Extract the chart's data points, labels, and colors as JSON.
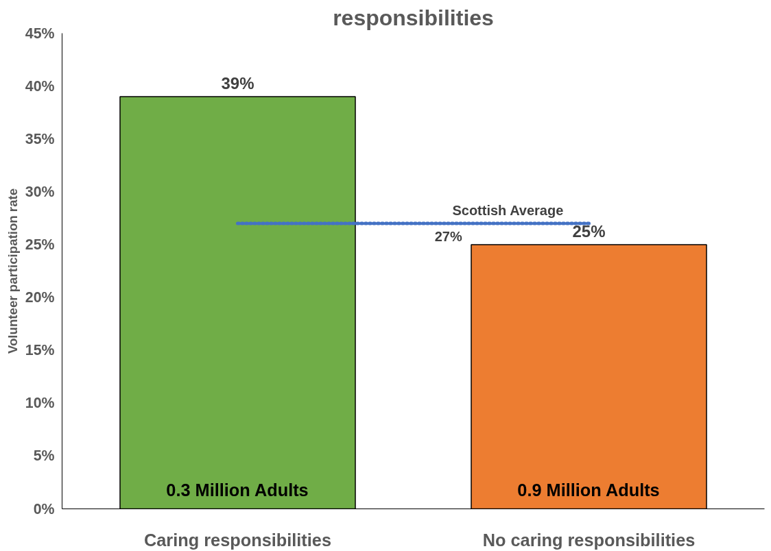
{
  "chart_data": {
    "type": "bar",
    "title": "responsibilities",
    "ylabel": "Volunteer participation rate",
    "categories": [
      "Caring responsibilities",
      "No caring responsibilities"
    ],
    "values": [
      39,
      25
    ],
    "colors": [
      "#70ad47",
      "#ed7d31"
    ],
    "value_labels": [
      "39%",
      "25%"
    ],
    "ylim": [
      0,
      45
    ],
    "yticks": [
      {
        "value": 0,
        "label": "0%"
      },
      {
        "value": 5,
        "label": "5%"
      },
      {
        "value": 10,
        "label": "10%"
      },
      {
        "value": 15,
        "label": "15%"
      },
      {
        "value": 20,
        "label": "20%"
      },
      {
        "value": 25,
        "label": "25%"
      },
      {
        "value": 30,
        "label": "30%"
      },
      {
        "value": 35,
        "label": "35%"
      },
      {
        "value": 40,
        "label": "40%"
      },
      {
        "value": 45,
        "label": "45%"
      }
    ],
    "ref_lines": [
      {
        "axis": "y",
        "value": 27,
        "label": "Scottish Average",
        "color": "#4472c4",
        "line_style": "dotted"
      }
    ],
    "annotations": [
      {
        "text": "27%",
        "y": 27
      },
      "0.3 Million Adults",
      "0.9 Million Adults"
    ],
    "grid": false
  }
}
